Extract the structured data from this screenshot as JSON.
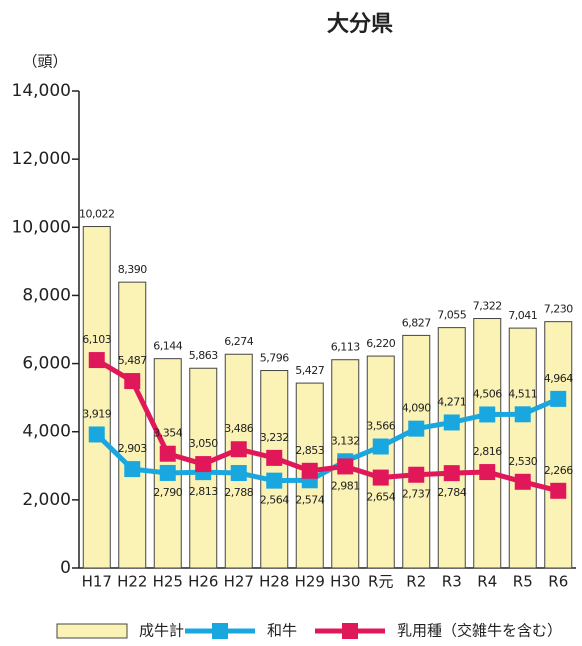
{
  "chart_data": {
    "type": "bar-line",
    "title": "大分県",
    "y_label": "（頭）",
    "categories": [
      "H17",
      "H22",
      "H25",
      "H26",
      "H27",
      "H28",
      "H29",
      "H30",
      "R元",
      "R2",
      "R3",
      "R4",
      "R5",
      "R6"
    ],
    "series": [
      {
        "name": "成牛計",
        "type": "bar",
        "color": "#fbf3b5",
        "values": [
          10022,
          8390,
          6144,
          5863,
          6274,
          5796,
          5427,
          6113,
          6220,
          6827,
          7055,
          7322,
          7041,
          7230
        ],
        "value_labels": [
          "10,022",
          "8,390",
          "6,144",
          "5,863",
          "6,274",
          "5,796",
          "5,427",
          "6,113",
          "6,220",
          "6,827",
          "7,055",
          "7,322",
          "7,041",
          "7,230"
        ]
      },
      {
        "name": "和牛",
        "type": "line",
        "color": "#1aa7e0",
        "values": [
          3919,
          2903,
          2790,
          2813,
          2788,
          2564,
          2574,
          3132,
          3566,
          4090,
          4271,
          4506,
          4511,
          4964
        ],
        "value_labels": [
          "3,919",
          "2,903",
          "2,790",
          "2,813",
          "2,788",
          "2,564",
          "2,574",
          "3,132",
          "3,566",
          "4,090",
          "4,271",
          "4,506",
          "4,511",
          "4,964"
        ]
      },
      {
        "name": "乳用種（交雑牛を含む）",
        "type": "line",
        "color": "#e0185a",
        "values": [
          6103,
          5487,
          3354,
          3050,
          3486,
          3232,
          2853,
          2981,
          2654,
          2737,
          2784,
          2816,
          2530,
          2266
        ],
        "value_labels": [
          "6,103",
          "5,487",
          "3,354",
          "3,050",
          "3,486",
          "3,232",
          "2,853",
          "2,981",
          "2,654",
          "2,737",
          "2,784",
          "2,816",
          "2,530",
          "2,266"
        ]
      }
    ],
    "ylim": [
      0,
      14000
    ],
    "yticks": [
      0,
      {
        "value": 2000,
        "label": "2,000"
      },
      {
        "value": 4000,
        "label": "4,000"
      },
      {
        "value": 6000,
        "label": "6,000"
      },
      {
        "value": 8000,
        "label": "8,000"
      },
      {
        "value": 10000,
        "label": "10,000"
      },
      {
        "value": 12000,
        "label": "12,000"
      },
      {
        "value": 14000,
        "label": "14,000"
      }
    ],
    "legend": "bottom"
  }
}
